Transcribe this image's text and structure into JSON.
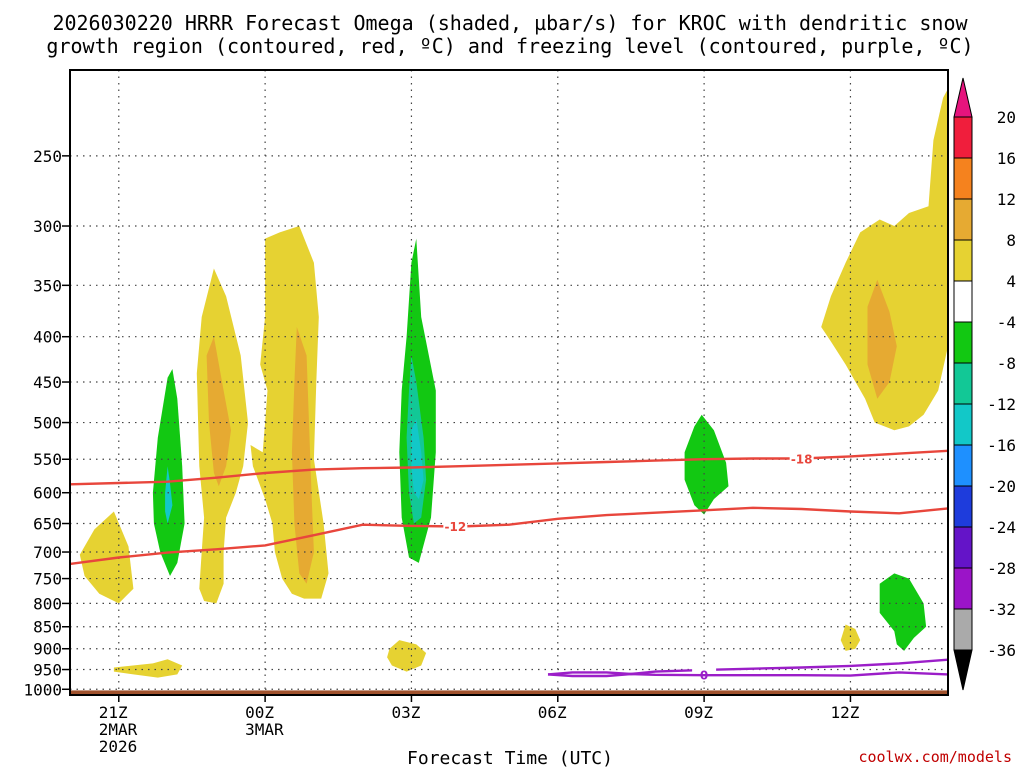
{
  "title": {
    "line1": "2026030220 HRRR Forecast Omega (shaded, µbar/s) for KROC with dendritic snow",
    "line2": "growth region (contoured, red, ºC) and freezing level (contoured, purple, ºC)"
  },
  "credit": "coolwx.com/models",
  "chart_data": {
    "type": "time-height cross section",
    "xlabel": "Forecast Time (UTC)",
    "ylabel": "",
    "x_ticks": [
      {
        "lines": [
          "21Z",
          "2MAR",
          "2026"
        ],
        "hours": 1
      },
      {
        "lines": [
          "00Z",
          "3MAR"
        ],
        "hours": 4
      },
      {
        "lines": [
          "03Z"
        ],
        "hours": 7
      },
      {
        "lines": [
          "06Z"
        ],
        "hours": 10
      },
      {
        "lines": [
          "09Z"
        ],
        "hours": 13
      },
      {
        "lines": [
          "12Z"
        ],
        "hours": 16
      }
    ],
    "x_range_hours": [
      0,
      18
    ],
    "y_ticks_hpa": [
      250,
      300,
      350,
      400,
      450,
      500,
      550,
      600,
      650,
      700,
      750,
      800,
      850,
      900,
      950,
      1000
    ],
    "y_range_hpa": [
      200,
      1015
    ],
    "y_scale": "log-pressure",
    "grid": true,
    "colorbar": {
      "labels": [
        "20",
        "16",
        "12",
        "8",
        "4",
        "-4",
        "-8",
        "-12",
        "-16",
        "-20",
        "-24",
        "-28",
        "-32",
        "-36"
      ],
      "colors": [
        "#f01e3c",
        "#f5821e",
        "#e6aa32",
        "#e6d232",
        "#ffffff",
        "#12c812",
        "#12c896",
        "#12c8c8",
        "#1e90ff",
        "#1e3cdc",
        "#6414c8",
        "#9b14c8",
        "#aaaaaa"
      ],
      "top_arrow_color": "#e6147d",
      "bottom_arrow_color": "#000000"
    },
    "omega_regions": [
      {
        "color": "#e6d232",
        "level": "4 to 8",
        "points": [
          [
            0.2,
            705
          ],
          [
            0.5,
            660
          ],
          [
            0.9,
            630
          ],
          [
            1.2,
            690
          ],
          [
            1.3,
            770
          ],
          [
            1.0,
            800
          ],
          [
            0.6,
            780
          ],
          [
            0.3,
            745
          ]
        ]
      },
      {
        "color": "#e6d232",
        "level": "4 to 8",
        "points": [
          [
            0.9,
            945
          ],
          [
            1.7,
            935
          ],
          [
            2.0,
            925
          ],
          [
            2.3,
            940
          ],
          [
            2.2,
            962
          ],
          [
            1.8,
            970
          ],
          [
            1.3,
            962
          ],
          [
            0.9,
            955
          ]
        ]
      },
      {
        "color": "#12c812",
        "level": "-4 to -8",
        "points": [
          [
            1.7,
            600
          ],
          [
            1.8,
            520
          ],
          [
            2.0,
            445
          ],
          [
            2.1,
            435
          ],
          [
            2.2,
            470
          ],
          [
            2.3,
            560
          ],
          [
            2.35,
            650
          ],
          [
            2.2,
            720
          ],
          [
            2.05,
            745
          ],
          [
            1.85,
            700
          ],
          [
            1.72,
            650
          ]
        ]
      },
      {
        "color": "#12c8c8",
        "level": "-12 to -16",
        "points": [
          [
            1.95,
            600
          ],
          [
            2.0,
            560
          ],
          [
            2.05,
            585
          ],
          [
            2.1,
            620
          ],
          [
            2.0,
            650
          ],
          [
            1.95,
            630
          ]
        ]
      },
      {
        "color": "#e6d232",
        "level": "4 to 8",
        "points": [
          [
            2.6,
            440
          ],
          [
            2.7,
            380
          ],
          [
            2.95,
            335
          ],
          [
            3.2,
            360
          ],
          [
            3.5,
            420
          ],
          [
            3.65,
            500
          ],
          [
            3.55,
            560
          ],
          [
            3.4,
            600
          ],
          [
            3.2,
            640
          ],
          [
            3.15,
            700
          ],
          [
            3.15,
            760
          ],
          [
            3.0,
            800
          ],
          [
            2.75,
            795
          ],
          [
            2.65,
            770
          ],
          [
            2.7,
            700
          ],
          [
            2.75,
            640
          ],
          [
            2.65,
            560
          ]
        ]
      },
      {
        "color": "#e6aa32",
        "level": "8 to 12",
        "points": [
          [
            2.8,
            420
          ],
          [
            2.95,
            400
          ],
          [
            3.15,
            460
          ],
          [
            3.3,
            510
          ],
          [
            3.2,
            560
          ],
          [
            3.05,
            590
          ],
          [
            2.95,
            570
          ],
          [
            2.85,
            500
          ]
        ]
      },
      {
        "color": "#e6d232",
        "level": "4 to 8",
        "points": [
          [
            4.0,
            310
          ],
          [
            4.3,
            305
          ],
          [
            4.7,
            300
          ],
          [
            5.0,
            330
          ],
          [
            5.1,
            380
          ],
          [
            5.05,
            450
          ],
          [
            5.0,
            550
          ],
          [
            5.2,
            650
          ],
          [
            5.3,
            740
          ],
          [
            5.15,
            790
          ],
          [
            4.8,
            790
          ],
          [
            4.55,
            780
          ],
          [
            4.35,
            750
          ],
          [
            4.2,
            700
          ],
          [
            4.15,
            650
          ],
          [
            4.0,
            610
          ],
          [
            3.75,
            560
          ],
          [
            3.7,
            530
          ],
          [
            3.95,
            540
          ],
          [
            4.0,
            500
          ],
          [
            4.05,
            460
          ],
          [
            3.9,
            430
          ],
          [
            4.0,
            380
          ]
        ]
      },
      {
        "color": "#e6aa32",
        "level": "8 to 12",
        "points": [
          [
            4.65,
            390
          ],
          [
            4.85,
            420
          ],
          [
            4.9,
            500
          ],
          [
            4.95,
            600
          ],
          [
            5.0,
            700
          ],
          [
            4.85,
            760
          ],
          [
            4.7,
            740
          ],
          [
            4.6,
            650
          ],
          [
            4.55,
            540
          ],
          [
            4.6,
            450
          ]
        ]
      },
      {
        "color": "#e6d232",
        "level": "4 to 8",
        "points": [
          [
            6.55,
            900
          ],
          [
            6.75,
            880
          ],
          [
            7.1,
            890
          ],
          [
            7.3,
            910
          ],
          [
            7.2,
            940
          ],
          [
            6.9,
            955
          ],
          [
            6.6,
            940
          ],
          [
            6.5,
            920
          ]
        ]
      },
      {
        "color": "#12c812",
        "level": "-4 to -8",
        "points": [
          [
            6.9,
            400
          ],
          [
            7.0,
            330
          ],
          [
            7.1,
            310
          ],
          [
            7.2,
            380
          ],
          [
            7.5,
            460
          ],
          [
            7.5,
            540
          ],
          [
            7.4,
            640
          ],
          [
            7.15,
            720
          ],
          [
            6.95,
            710
          ],
          [
            6.8,
            640
          ],
          [
            6.75,
            540
          ],
          [
            6.8,
            460
          ]
        ]
      },
      {
        "color": "#12c896",
        "level": "-8 to -12",
        "points": [
          [
            6.95,
            460
          ],
          [
            7.0,
            420
          ],
          [
            7.1,
            450
          ],
          [
            7.25,
            520
          ],
          [
            7.3,
            580
          ],
          [
            7.2,
            640
          ],
          [
            7.05,
            650
          ],
          [
            6.95,
            600
          ],
          [
            6.9,
            520
          ]
        ]
      },
      {
        "color": "#12c8c8",
        "level": "-12 to -16",
        "points": [
          [
            7.0,
            510
          ],
          [
            7.1,
            495
          ],
          [
            7.2,
            540
          ],
          [
            7.25,
            580
          ],
          [
            7.15,
            610
          ],
          [
            7.05,
            600
          ],
          [
            7.0,
            560
          ]
        ]
      },
      {
        "color": "#12c812",
        "level": "-4 to -8",
        "points": [
          [
            12.6,
            540
          ],
          [
            12.8,
            505
          ],
          [
            12.95,
            490
          ],
          [
            13.2,
            510
          ],
          [
            13.45,
            555
          ],
          [
            13.5,
            590
          ],
          [
            13.2,
            610
          ],
          [
            13.0,
            635
          ],
          [
            12.8,
            620
          ],
          [
            12.6,
            580
          ]
        ]
      },
      {
        "color": "#e6d232",
        "level": "4 to 8",
        "points": [
          [
            15.8,
            880
          ],
          [
            15.9,
            845
          ],
          [
            16.1,
            855
          ],
          [
            16.2,
            880
          ],
          [
            16.1,
            900
          ],
          [
            15.9,
            905
          ]
        ]
      },
      {
        "color": "#12c812",
        "level": "-4 to -8",
        "points": [
          [
            16.6,
            760
          ],
          [
            16.9,
            740
          ],
          [
            17.2,
            750
          ],
          [
            17.5,
            800
          ],
          [
            17.55,
            850
          ],
          [
            17.3,
            875
          ],
          [
            17.1,
            905
          ],
          [
            16.95,
            890
          ],
          [
            16.9,
            860
          ],
          [
            16.6,
            820
          ]
        ]
      },
      {
        "color": "#e6d232",
        "level": "4 to 8",
        "points": [
          [
            15.4,
            390
          ],
          [
            15.6,
            360
          ],
          [
            15.9,
            330
          ],
          [
            16.2,
            305
          ],
          [
            16.6,
            295
          ],
          [
            16.9,
            300
          ],
          [
            17.2,
            290
          ],
          [
            17.6,
            285
          ],
          [
            17.7,
            240
          ],
          [
            17.9,
            215
          ],
          [
            18.0,
            210
          ],
          [
            18.0,
            410
          ],
          [
            17.8,
            460
          ],
          [
            17.5,
            490
          ],
          [
            17.2,
            505
          ],
          [
            16.9,
            510
          ],
          [
            16.5,
            500
          ],
          [
            16.3,
            470
          ],
          [
            15.9,
            430
          ],
          [
            15.6,
            405
          ]
        ]
      },
      {
        "color": "#e6aa32",
        "level": "8 to 12",
        "points": [
          [
            16.35,
            370
          ],
          [
            16.55,
            345
          ],
          [
            16.8,
            375
          ],
          [
            16.95,
            410
          ],
          [
            16.8,
            450
          ],
          [
            16.55,
            470
          ],
          [
            16.35,
            430
          ]
        ]
      }
    ],
    "isotherms": [
      {
        "label": "-18",
        "color": "#e8463c",
        "points": [
          [
            -1,
            590
          ],
          [
            0,
            587
          ],
          [
            1,
            585
          ],
          [
            2,
            583
          ],
          [
            3,
            577
          ],
          [
            4,
            570
          ],
          [
            5,
            565
          ],
          [
            6,
            563
          ],
          [
            7,
            562
          ],
          [
            8,
            560
          ],
          [
            9,
            558
          ],
          [
            10,
            556
          ],
          [
            11,
            554
          ],
          [
            12,
            552
          ],
          [
            13,
            550
          ],
          [
            14,
            549
          ],
          [
            15,
            549
          ],
          [
            16,
            546
          ],
          [
            17,
            542
          ],
          [
            18,
            538
          ]
        ],
        "label_at": [
          15.0,
          549
        ]
      },
      {
        "label": "-12",
        "color": "#e8463c",
        "points": [
          [
            -1,
            740
          ],
          [
            0,
            722
          ],
          [
            1,
            710
          ],
          [
            2,
            701
          ],
          [
            3,
            695
          ],
          [
            4,
            688
          ],
          [
            5,
            670
          ],
          [
            6,
            652
          ],
          [
            7,
            654
          ],
          [
            8,
            655
          ],
          [
            9,
            652
          ],
          [
            10,
            642
          ],
          [
            11,
            636
          ],
          [
            12,
            632
          ],
          [
            13,
            628
          ],
          [
            14,
            624
          ],
          [
            15,
            626
          ],
          [
            16,
            630
          ],
          [
            17,
            633
          ],
          [
            18,
            625
          ]
        ],
        "label_at": [
          7.9,
          654
        ]
      },
      {
        "label": "0",
        "color": "#9b1ec8",
        "points": [
          [
            9.8,
            962
          ],
          [
            10.3,
            957
          ],
          [
            11.0,
            957
          ],
          [
            11.5,
            961
          ],
          [
            12.0,
            955
          ],
          [
            13.0,
            951
          ],
          [
            14.0,
            948
          ],
          [
            15.0,
            945
          ],
          [
            16.0,
            941
          ],
          [
            17.0,
            935
          ],
          [
            18.0,
            926
          ]
        ],
        "label_at": [
          13.0,
          962
        ]
      },
      {
        "label": "",
        "color": "#9b1ec8",
        "points": [
          [
            9.8,
            962
          ],
          [
            10.3,
            966
          ],
          [
            11.0,
            966
          ],
          [
            11.5,
            961
          ],
          [
            12.0,
            963
          ],
          [
            13.0,
            964
          ],
          [
            14.0,
            964
          ],
          [
            15.0,
            964
          ],
          [
            16.0,
            965
          ],
          [
            17.0,
            957
          ],
          [
            18.0,
            962
          ]
        ],
        "label_at": null
      }
    ],
    "terrain": {
      "color": "#a0522d",
      "top_hpa": 1003
    }
  }
}
